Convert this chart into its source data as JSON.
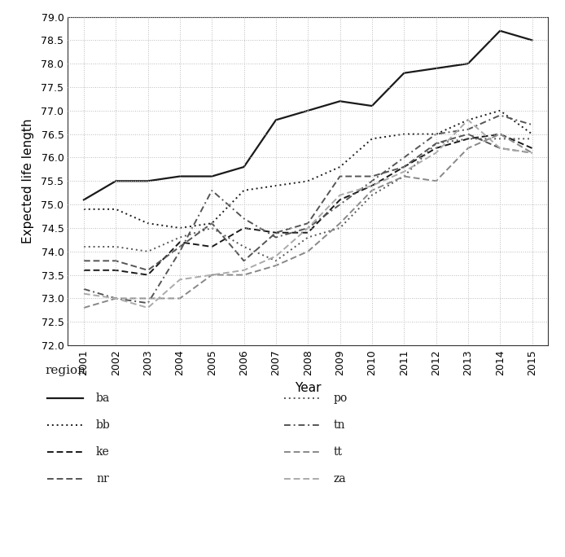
{
  "years": [
    2001,
    2002,
    2003,
    2004,
    2005,
    2006,
    2007,
    2008,
    2009,
    2010,
    2011,
    2012,
    2013,
    2014,
    2015
  ],
  "series": {
    "ba": [
      75.1,
      75.5,
      75.5,
      75.6,
      75.6,
      75.8,
      76.8,
      77.0,
      77.2,
      77.1,
      77.8,
      77.9,
      78.0,
      78.7,
      78.5
    ],
    "bb": [
      74.9,
      74.9,
      74.6,
      74.5,
      74.6,
      75.3,
      75.4,
      75.5,
      75.8,
      76.4,
      76.5,
      76.5,
      76.8,
      77.0,
      76.5
    ],
    "ke": [
      73.6,
      73.6,
      73.5,
      74.2,
      74.1,
      74.5,
      74.4,
      74.4,
      75.1,
      75.4,
      75.8,
      76.2,
      76.4,
      76.5,
      76.2
    ],
    "nr": [
      73.8,
      73.8,
      73.6,
      74.1,
      74.6,
      73.8,
      74.4,
      74.6,
      75.6,
      75.6,
      75.8,
      76.3,
      76.5,
      76.2,
      76.1
    ],
    "po": [
      74.1,
      74.1,
      74.0,
      74.3,
      74.5,
      74.1,
      73.8,
      74.3,
      74.5,
      75.2,
      75.6,
      76.3,
      76.4,
      76.4,
      76.4
    ],
    "tn": [
      73.2,
      73.0,
      72.9,
      74.0,
      75.3,
      74.7,
      74.3,
      74.5,
      75.0,
      75.5,
      76.0,
      76.5,
      76.6,
      76.9,
      76.7
    ],
    "tt": [
      72.8,
      73.0,
      73.0,
      73.0,
      73.5,
      73.5,
      73.7,
      74.0,
      74.6,
      75.3,
      75.6,
      75.5,
      76.2,
      76.5,
      76.1
    ],
    "za": [
      73.1,
      73.0,
      72.8,
      73.4,
      73.5,
      73.6,
      73.9,
      74.5,
      75.2,
      75.4,
      75.7,
      76.1,
      76.8,
      76.2,
      76.1
    ]
  },
  "line_configs": {
    "ba": {
      "linestyle": "solid",
      "linewidth": 1.6,
      "color": "#1a1a1a"
    },
    "bb": {
      "linestyle": "dotted",
      "linewidth": 1.4,
      "color": "#1a1a1a"
    },
    "ke": {
      "linestyle": "dashed",
      "linewidth": 1.4,
      "color": "#1a1a1a"
    },
    "nr": {
      "linestyle": "dashed",
      "linewidth": 1.4,
      "color": "#555555"
    },
    "po": {
      "linestyle": "dotted",
      "linewidth": 1.4,
      "color": "#555555"
    },
    "tn": {
      "linestyle": "dashdot",
      "linewidth": 1.4,
      "color": "#555555"
    },
    "tt": {
      "linestyle": "dashed",
      "linewidth": 1.4,
      "color": "#888888"
    },
    "za": {
      "linestyle": "dashed",
      "linewidth": 1.4,
      "color": "#aaaaaa"
    }
  },
  "xlabel": "Year",
  "ylabel": "Expected life length",
  "ylim": [
    72.0,
    79.0
  ],
  "yticks": [
    72.0,
    72.5,
    73.0,
    73.5,
    74.0,
    74.5,
    75.0,
    75.5,
    76.0,
    76.5,
    77.0,
    77.5,
    78.0,
    78.5,
    79.0
  ],
  "background_color": "#ffffff",
  "grid_color": "#bbbbbb",
  "legend_title": "region",
  "left_regions": [
    "ba",
    "bb",
    "ke",
    "nr"
  ],
  "right_regions": [
    "po",
    "tn",
    "tt",
    "za"
  ]
}
